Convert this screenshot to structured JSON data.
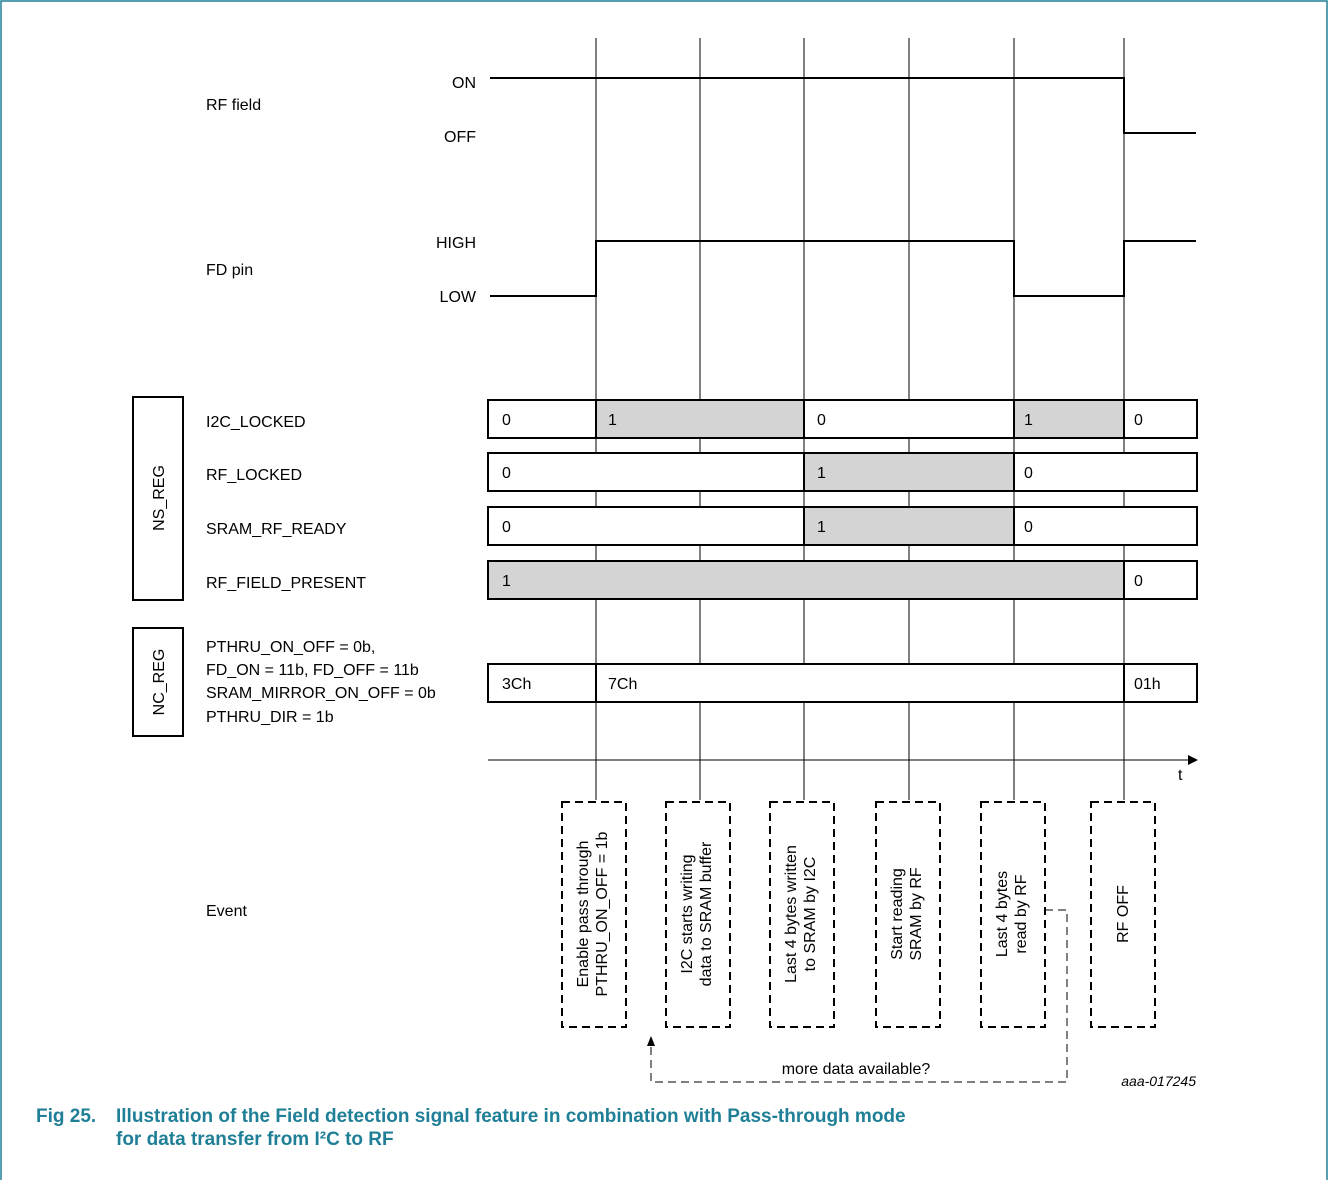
{
  "signals": {
    "rf_field": {
      "label": "RF field",
      "high": "ON",
      "low": "OFF"
    },
    "fd_pin": {
      "label": "FD pin",
      "high": "HIGH",
      "low": "LOW"
    }
  },
  "ns_reg": {
    "group_label": "NS_REG",
    "rows": [
      {
        "label": "I2C_LOCKED",
        "values": [
          "0",
          "1",
          "0",
          "1",
          "0"
        ]
      },
      {
        "label": "RF_LOCKED",
        "values": [
          "0",
          "1",
          "0"
        ]
      },
      {
        "label": "SRAM_RF_READY",
        "values": [
          "0",
          "1",
          "0"
        ]
      },
      {
        "label": "RF_FIELD_PRESENT",
        "values": [
          "1",
          "0"
        ]
      }
    ]
  },
  "nc_reg": {
    "group_label": "NC_REG",
    "settings": [
      "PTHRU_ON_OFF = 0b,",
      "FD_ON = 11b, FD_OFF = 11b",
      "SRAM_MIRROR_ON_OFF = 0b",
      "PTHRU_DIR = 1b"
    ],
    "values": [
      "3Ch",
      "7Ch",
      "01h"
    ]
  },
  "time_axis": {
    "label": "t"
  },
  "events": {
    "label": "Event",
    "items": [
      [
        "Enable pass through",
        "PTHRU_ON_OFF = 1b"
      ],
      [
        "I2C starts writing",
        "data to SRAM buffer"
      ],
      [
        "Last 4 bytes written",
        "to SRAM  by I2C"
      ],
      [
        "Start reading",
        "SRAM by RF"
      ],
      [
        "Last 4 bytes",
        "read by RF"
      ],
      [
        "RF OFF"
      ]
    ],
    "loop_label": "more data available?"
  },
  "figure_id": "aaa-017245",
  "caption": {
    "number": "Fig 25.",
    "line1": "Illustration of the Field detection signal feature in combination with Pass-through mode",
    "line2": "for data transfer from I²C to RF"
  },
  "colors": {
    "shade": "#d4d4d4",
    "caption": "#1f7f96",
    "frame": "#1f7f96"
  }
}
